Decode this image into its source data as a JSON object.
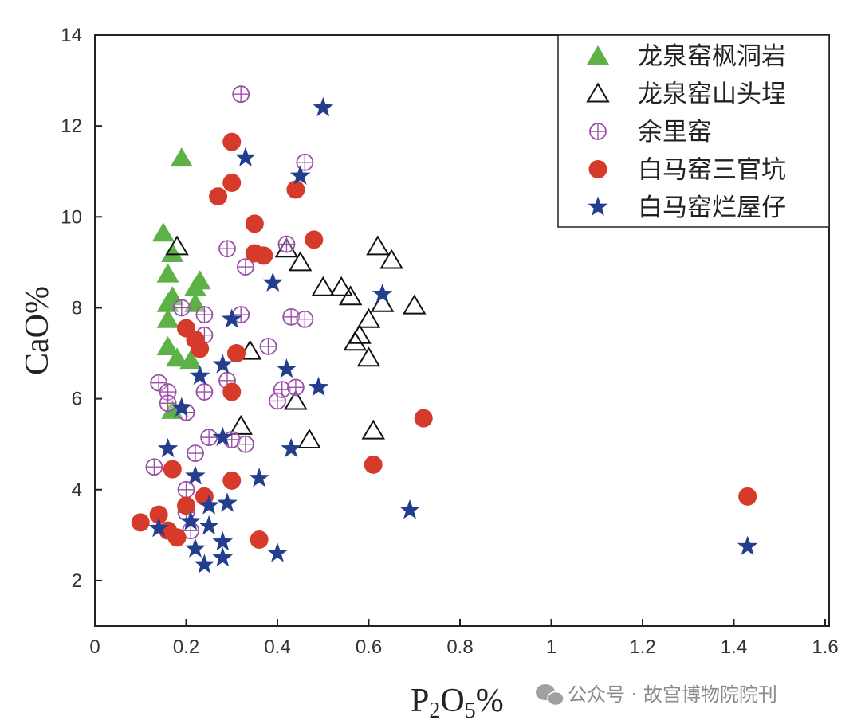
{
  "chart_data": {
    "type": "scatter",
    "title": "",
    "xlabel": "P2O5%",
    "xlabel_parts": {
      "base1": "P",
      "sub1": "2",
      "base2": "O",
      "sub2": "5",
      "suffix": "%"
    },
    "ylabel": "CaO%",
    "xlim": [
      0,
      1.6
    ],
    "ylim": [
      1,
      14
    ],
    "xticks": [
      "0",
      "0.2",
      "0.4",
      "0.6",
      "0.8",
      "1",
      "1.2",
      "1.4",
      "1.6"
    ],
    "yticks": [
      "2",
      "4",
      "6",
      "8",
      "10",
      "12",
      "14"
    ],
    "grid": false,
    "legend_position": "top-right",
    "series": [
      {
        "name": "龙泉窑枫洞岩",
        "marker": "filled-triangle",
        "color": "#5cb246",
        "points": [
          [
            0.19,
            11.3
          ],
          [
            0.15,
            9.65
          ],
          [
            0.17,
            9.2
          ],
          [
            0.16,
            8.75
          ],
          [
            0.23,
            8.6
          ],
          [
            0.22,
            8.45
          ],
          [
            0.17,
            8.25
          ],
          [
            0.16,
            8.1
          ],
          [
            0.22,
            8.1
          ],
          [
            0.16,
            7.75
          ],
          [
            0.16,
            7.15
          ],
          [
            0.18,
            6.9
          ],
          [
            0.21,
            6.85
          ],
          [
            0.17,
            5.75
          ]
        ]
      },
      {
        "name": "龙泉窑山头埕",
        "marker": "open-triangle",
        "color": "#111111",
        "points": [
          [
            0.18,
            9.35
          ],
          [
            0.42,
            9.3
          ],
          [
            0.45,
            9.0
          ],
          [
            0.5,
            8.45
          ],
          [
            0.54,
            8.45
          ],
          [
            0.56,
            8.25
          ],
          [
            0.62,
            9.35
          ],
          [
            0.65,
            9.05
          ],
          [
            0.63,
            8.1
          ],
          [
            0.7,
            8.05
          ],
          [
            0.6,
            7.75
          ],
          [
            0.58,
            7.4
          ],
          [
            0.57,
            7.25
          ],
          [
            0.6,
            6.9
          ],
          [
            0.34,
            7.05
          ],
          [
            0.44,
            5.95
          ],
          [
            0.32,
            5.4
          ],
          [
            0.47,
            5.1
          ],
          [
            0.61,
            5.3
          ]
        ]
      },
      {
        "name": "余里窑",
        "marker": "circle-plus",
        "color": "#9b4fa8",
        "points": [
          [
            0.32,
            12.7
          ],
          [
            0.46,
            11.2
          ],
          [
            0.29,
            9.3
          ],
          [
            0.42,
            9.4
          ],
          [
            0.33,
            8.9
          ],
          [
            0.19,
            8.0
          ],
          [
            0.24,
            7.85
          ],
          [
            0.32,
            7.85
          ],
          [
            0.43,
            7.8
          ],
          [
            0.46,
            7.75
          ],
          [
            0.24,
            7.4
          ],
          [
            0.38,
            7.15
          ],
          [
            0.14,
            6.35
          ],
          [
            0.16,
            6.15
          ],
          [
            0.24,
            6.15
          ],
          [
            0.29,
            6.4
          ],
          [
            0.41,
            6.2
          ],
          [
            0.44,
            6.25
          ],
          [
            0.4,
            5.95
          ],
          [
            0.16,
            5.9
          ],
          [
            0.2,
            5.7
          ],
          [
            0.25,
            5.15
          ],
          [
            0.3,
            5.1
          ],
          [
            0.33,
            5.0
          ],
          [
            0.22,
            4.8
          ],
          [
            0.13,
            4.5
          ],
          [
            0.2,
            4.0
          ],
          [
            0.2,
            3.5
          ],
          [
            0.21,
            3.1
          ]
        ]
      },
      {
        "name": "白马窑三官坑",
        "marker": "filled-circle",
        "color": "#d63a2a",
        "points": [
          [
            0.3,
            11.65
          ],
          [
            0.3,
            10.75
          ],
          [
            0.27,
            10.45
          ],
          [
            0.44,
            10.6
          ],
          [
            0.35,
            9.85
          ],
          [
            0.48,
            9.5
          ],
          [
            0.35,
            9.2
          ],
          [
            0.37,
            9.15
          ],
          [
            0.2,
            7.55
          ],
          [
            0.22,
            7.3
          ],
          [
            0.23,
            7.1
          ],
          [
            0.31,
            7.0
          ],
          [
            0.3,
            6.15
          ],
          [
            0.72,
            5.57
          ],
          [
            0.17,
            4.45
          ],
          [
            0.3,
            4.2
          ],
          [
            0.61,
            4.55
          ],
          [
            0.2,
            3.65
          ],
          [
            0.24,
            3.85
          ],
          [
            0.14,
            3.45
          ],
          [
            0.1,
            3.28
          ],
          [
            0.16,
            3.1
          ],
          [
            0.18,
            2.95
          ],
          [
            0.36,
            2.9
          ],
          [
            1.43,
            3.85
          ]
        ]
      },
      {
        "name": "白马窑烂屋仔",
        "marker": "star",
        "color": "#233e8e",
        "points": [
          [
            0.5,
            12.4
          ],
          [
            0.33,
            11.3
          ],
          [
            0.45,
            10.9
          ],
          [
            0.39,
            8.55
          ],
          [
            0.63,
            8.3
          ],
          [
            0.3,
            7.75
          ],
          [
            0.42,
            6.65
          ],
          [
            0.49,
            6.25
          ],
          [
            0.23,
            6.5
          ],
          [
            0.28,
            6.75
          ],
          [
            0.19,
            5.8
          ],
          [
            0.16,
            4.9
          ],
          [
            0.43,
            4.9
          ],
          [
            0.28,
            5.15
          ],
          [
            0.22,
            4.3
          ],
          [
            0.36,
            4.25
          ],
          [
            0.29,
            3.7
          ],
          [
            0.25,
            3.65
          ],
          [
            0.21,
            3.3
          ],
          [
            0.25,
            3.2
          ],
          [
            0.14,
            3.15
          ],
          [
            0.69,
            3.55
          ],
          [
            0.28,
            2.85
          ],
          [
            0.22,
            2.7
          ],
          [
            0.28,
            2.5
          ],
          [
            0.24,
            2.35
          ],
          [
            0.4,
            2.6
          ],
          [
            1.43,
            2.75
          ]
        ]
      }
    ]
  },
  "watermark": {
    "text": "公众号 · 故宫博物院院刊",
    "icon": "wechat-icon"
  }
}
